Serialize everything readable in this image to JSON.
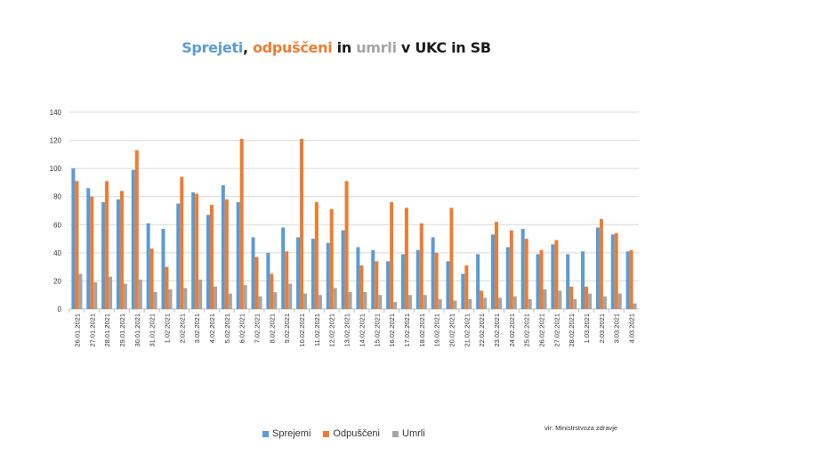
{
  "chart_data": {
    "type": "bar",
    "title_parts": [
      {
        "text": "Sprejeti",
        "color": "#5b9bd5"
      },
      {
        "text": ", ",
        "color": "#1a1a1a"
      },
      {
        "text": "odpuščeni",
        "color": "#ed7d31"
      },
      {
        "text": " in ",
        "color": "#1a1a1a"
      },
      {
        "text": "umrli",
        "color": "#a5a5a5"
      },
      {
        "text": " v UKC in SB",
        "color": "#1a1a1a"
      }
    ],
    "categories": [
      "26.01.2021",
      "27.01.2021",
      "28.01.2021",
      "29.01.2021",
      "30.01.2021",
      "31.01.2021",
      "1.02.2021",
      "2.02.2021",
      "3.02.2021",
      "4.02.2021",
      "5.02.2021",
      "6.02.2021",
      "7.02.2021",
      "8.02.2021",
      "9.02.2021",
      "10.02.2021",
      "11.02.2021",
      "12.02.2021",
      "13.02.2021",
      "14.02.2021",
      "15.02.2021",
      "16.02.2021",
      "17.02.2021",
      "18.02.2021",
      "19.02.2021",
      "20.02.2021",
      "21.02.2021",
      "22.02.2021",
      "23.02.2021",
      "24.02.2021",
      "25.02.2021",
      "26.02.2021",
      "27.02.2021",
      "28.02.2021",
      "1.03.2021",
      "2.03.2021",
      "3.03.2021",
      "4.03.2021"
    ],
    "series": [
      {
        "name": "Sprejemi",
        "color": "#5b9bd5",
        "values": [
          100,
          86,
          76,
          78,
          99,
          61,
          57,
          75,
          83,
          67,
          88,
          76,
          51,
          40,
          58,
          51,
          50,
          47,
          56,
          44,
          42,
          34,
          39,
          42,
          51,
          34,
          25,
          39,
          53,
          44,
          57,
          39,
          46,
          39,
          41,
          58,
          53,
          41
        ]
      },
      {
        "name": "Odpuščeni",
        "color": "#ed7d31",
        "values": [
          91,
          80,
          91,
          84,
          113,
          43,
          30,
          94,
          82,
          74,
          78,
          121,
          37,
          25,
          41,
          121,
          76,
          71,
          91,
          31,
          34,
          76,
          72,
          61,
          40,
          72,
          31,
          13,
          62,
          56,
          50,
          42,
          49,
          16,
          16,
          64,
          54,
          42
        ]
      },
      {
        "name": "Umrli",
        "color": "#a5a5a5",
        "values": [
          25,
          19,
          23,
          18,
          21,
          12,
          14,
          15,
          21,
          16,
          11,
          17,
          9,
          12,
          18,
          11,
          10,
          15,
          12,
          12,
          10,
          5,
          10,
          10,
          7,
          6,
          7,
          8,
          8,
          9,
          7,
          14,
          13,
          7,
          11,
          9,
          11,
          4
        ]
      }
    ],
    "ylim": [
      0,
      140
    ],
    "yticks": [
      0,
      20,
      40,
      60,
      80,
      100,
      120,
      140
    ],
    "grid": true,
    "legend_placement": "bottom",
    "source_note": "vir: Ministrstvoza zdravje"
  }
}
